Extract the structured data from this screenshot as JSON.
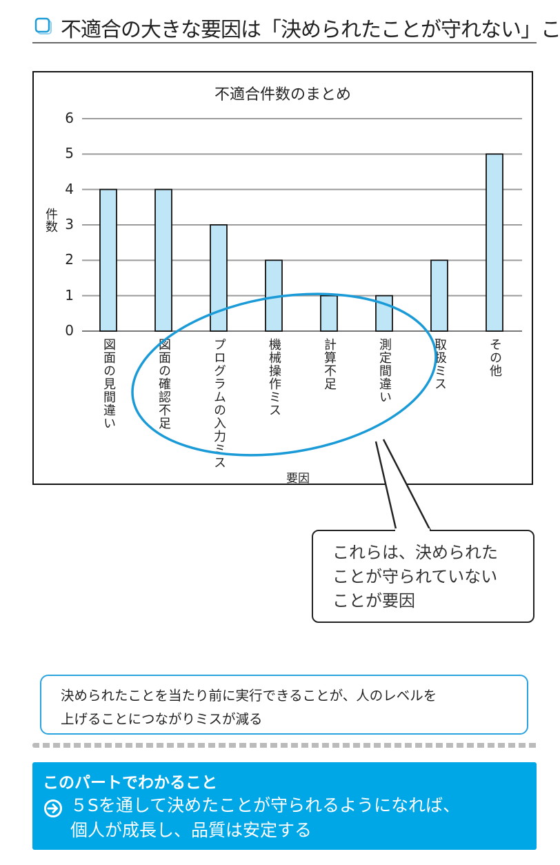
{
  "heading": {
    "icon": "square-bullet-icon",
    "text": "不適合の大きな要因は「決められたことが守れない」こと"
  },
  "chart_data": {
    "type": "bar",
    "title": "不適合件数のまとめ",
    "xlabel": "要因",
    "ylabel": "件数",
    "ylim": [
      0,
      6
    ],
    "yticks": [
      "0",
      "1",
      "2",
      "3",
      "4",
      "5",
      "6"
    ],
    "grid": true,
    "categories": [
      "図面の見間違い",
      "図面の確認不足",
      "プログラムの入力ミス",
      "機械操作ミス",
      "計算不足",
      "測定間違い",
      "取扱ミス",
      "その他"
    ],
    "values": [
      4,
      4,
      3,
      2,
      1,
      1,
      2,
      5
    ],
    "bar_color": "#bfe6f7",
    "highlight_color": "#1a9ad6"
  },
  "callout": {
    "lines": [
      "これらは、決められた",
      "ことが守られていない",
      "ことが要因"
    ]
  },
  "message": {
    "lines": [
      "決められたことを当たり前に実行できることが、人のレベルを",
      "上げることにつながりミスが減る"
    ],
    "border_color": "#29a3dd"
  },
  "summary": {
    "title": "このパートでわかること",
    "icon": "arrow-circle-right-icon",
    "lines": [
      "５Sを通して決めたことが守られるようになれば、",
      "個人が成長し、品質は安定する"
    ],
    "bg_color": "#00a7e6"
  }
}
